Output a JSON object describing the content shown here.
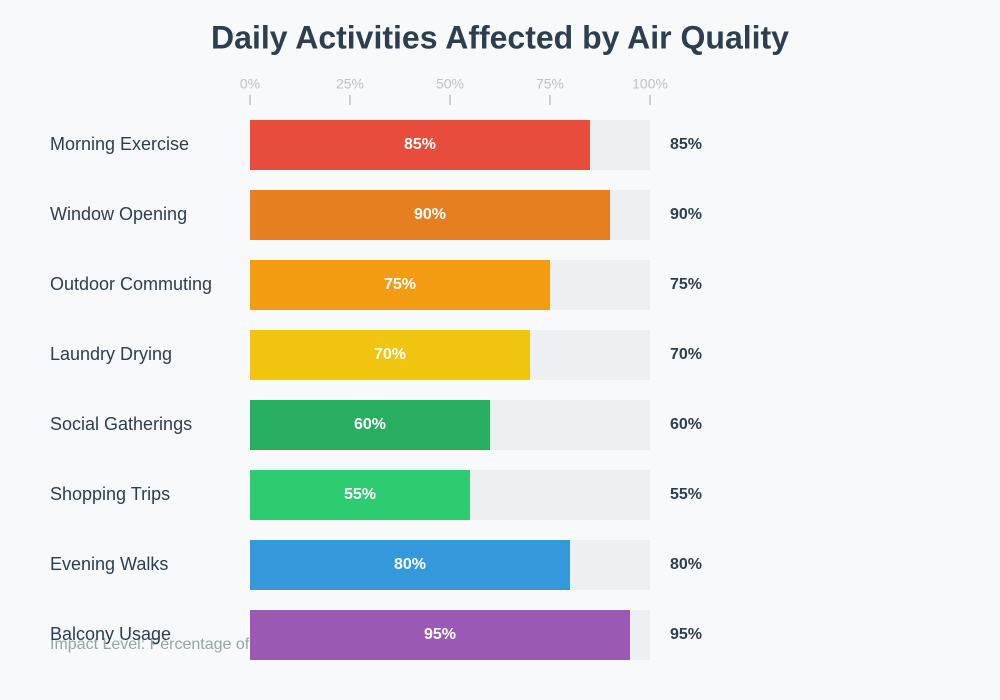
{
  "chart_data": {
    "type": "bar",
    "orientation": "horizontal",
    "title": "Daily Activities Affected by Air Quality",
    "note": "Impact Level: Percentage of residents who modify this activity based on air quality",
    "categories": [
      "Morning Exercise",
      "Window Opening",
      "Outdoor Commuting",
      "Laundry Drying",
      "Social Gatherings",
      "Shopping Trips",
      "Evening Walks",
      "Balcony Usage"
    ],
    "values": [
      85,
      90,
      75,
      70,
      60,
      55,
      80,
      95
    ],
    "value_labels": [
      "85%",
      "90%",
      "75%",
      "70%",
      "60%",
      "55%",
      "80%",
      "95%"
    ],
    "colors": [
      "#e74c3c",
      "#e67e22",
      "#f39c12",
      "#f1c40f",
      "#27ae60",
      "#2ecc71",
      "#3498db",
      "#9b59b6"
    ],
    "xlim": [
      0,
      100
    ],
    "xticks": [
      {
        "value": 0,
        "label": "0%"
      },
      {
        "value": 25,
        "label": "25%"
      },
      {
        "value": 50,
        "label": "50%"
      },
      {
        "value": 75,
        "label": "75%"
      },
      {
        "value": 100,
        "label": "100%"
      }
    ]
  }
}
